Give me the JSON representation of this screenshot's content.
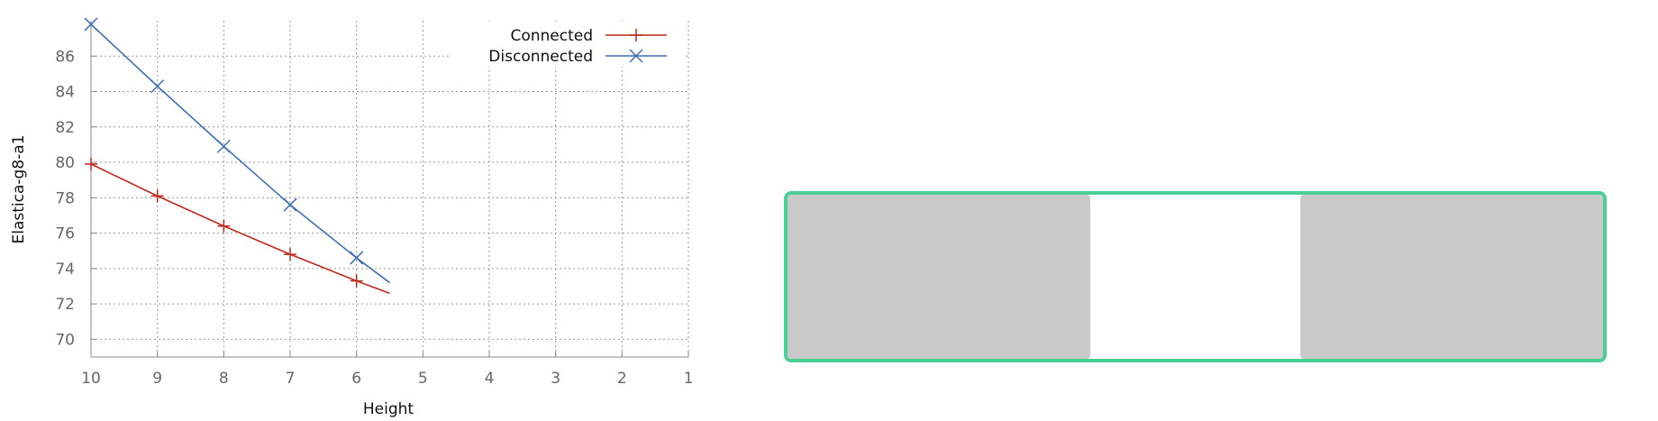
{
  "chart_data": {
    "type": "line",
    "xlabel": "Height",
    "ylabel": "Elastica-g8-a1",
    "xlim": [
      10,
      1
    ],
    "ylim": [
      69,
      88
    ],
    "x_reversed": true,
    "x_ticks": [
      "10",
      "9",
      "8",
      "7",
      "6",
      "5",
      "4",
      "3",
      "2",
      "1"
    ],
    "y_ticks": [
      "70",
      "72",
      "74",
      "76",
      "78",
      "80",
      "82",
      "84",
      "86"
    ],
    "grid": true,
    "legend_position": "top-right",
    "series": [
      {
        "name": "Connected",
        "color": "#c0281f",
        "marker": "plus",
        "x": [
          10,
          9,
          8,
          7,
          6,
          5.5
        ],
        "y": [
          79.9,
          78.1,
          76.4,
          74.8,
          73.3,
          72.6
        ],
        "marker_x": [
          10,
          9,
          8,
          7,
          6
        ]
      },
      {
        "name": "Disconnected",
        "color": "#3f6fb5",
        "marker": "cross",
        "x": [
          10,
          9,
          8,
          7,
          6,
          5.5
        ],
        "y": [
          87.8,
          84.3,
          80.9,
          77.6,
          74.6,
          73.2
        ],
        "marker_x": [
          10,
          9,
          8,
          7,
          6
        ]
      }
    ]
  },
  "diagram": {
    "frame_color": "#4ccf96",
    "block_color": "#c9c9c9"
  }
}
